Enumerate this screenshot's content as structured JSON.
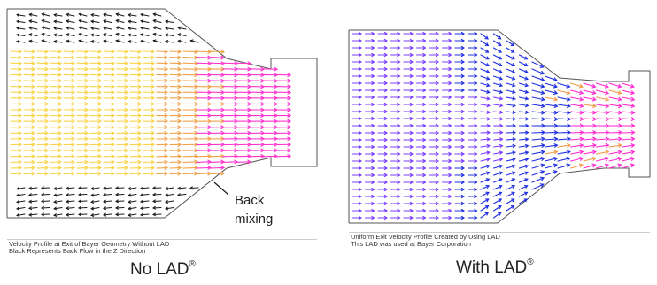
{
  "panels": [
    {
      "label": "No LAD",
      "label_mark": "®",
      "caption_line1": "Velocity Profile at Exit of Bayer Geometry Without LAD",
      "caption_line2": "Black Represents Back Flow in the Z Direction",
      "annotation_line1": "Back",
      "annotation_line2": "mixing",
      "colors": {
        "backflow": "#1a1a1a",
        "core": "#f7d44a",
        "mid": "#f0a24a",
        "fast": "#ff33cc",
        "outline": "#555555"
      }
    },
    {
      "label": "With LAD",
      "label_mark": "®",
      "caption_line1": "Uniform Exit Velocity Profile Created by Using LAD",
      "caption_line2": "This LAD was used at Bayer Corporation",
      "colors": {
        "slow": "#7a3cff",
        "mid": "#1f2fe0",
        "fast": "#ff2bd0",
        "accent": "#f29b4a",
        "outline": "#555555"
      }
    }
  ]
}
